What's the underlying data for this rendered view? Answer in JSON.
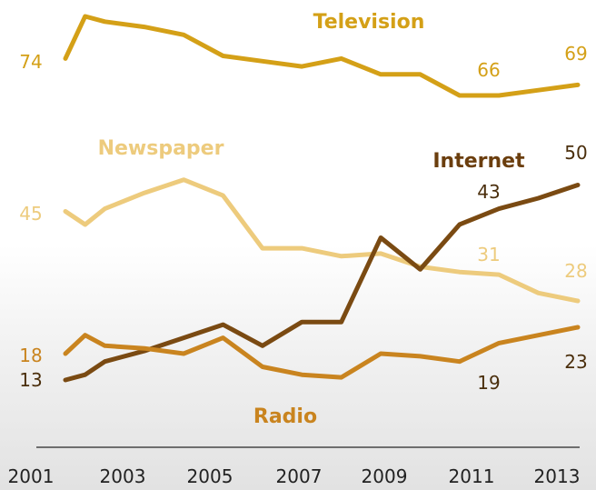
{
  "chart_data": {
    "type": "line",
    "x": [
      2001,
      2001.5,
      2002,
      2003,
      2004,
      2005,
      2006,
      2007,
      2008,
      2009,
      2010,
      2011,
      2012,
      2013,
      2014
    ],
    "xticks": [
      "2001",
      "2003",
      "2005",
      "2007",
      "2009",
      "2011",
      "2013"
    ],
    "ylim": [
      0,
      80
    ],
    "colors": {
      "Television": "#D4A017",
      "Newspaper": "#EDCB7D",
      "Internet": "#7A4A12",
      "Radio": "#C9841F"
    },
    "series": [
      {
        "name": "Television",
        "values": [
          74,
          82,
          81,
          80,
          78.5,
          74.5,
          73.5,
          72.5,
          74,
          71,
          71,
          67,
          67,
          68,
          69
        ],
        "start_label": "74",
        "mid_label": "66",
        "end_label": "69"
      },
      {
        "name": "Newspaper",
        "values": [
          45,
          42.5,
          45.5,
          48.5,
          51,
          48,
          38,
          38,
          36.5,
          37,
          34.5,
          33.5,
          33,
          29.5,
          28
        ],
        "start_label": "45",
        "mid_label": "31",
        "end_label": "28"
      },
      {
        "name": "Internet",
        "values": [
          13,
          14,
          16.5,
          18.5,
          21,
          23.5,
          19.5,
          24,
          24,
          40,
          34,
          42.5,
          45.5,
          47.5,
          50
        ],
        "start_label": "13",
        "mid_label": "43",
        "end_label": "50"
      },
      {
        "name": "Radio",
        "values": [
          18,
          21.5,
          19.5,
          19,
          18,
          21,
          15.5,
          14,
          13.5,
          18,
          17.5,
          16.5,
          20,
          21.5,
          23
        ],
        "start_label": "18",
        "mid_label": "19",
        "end_label": "23"
      }
    ]
  }
}
